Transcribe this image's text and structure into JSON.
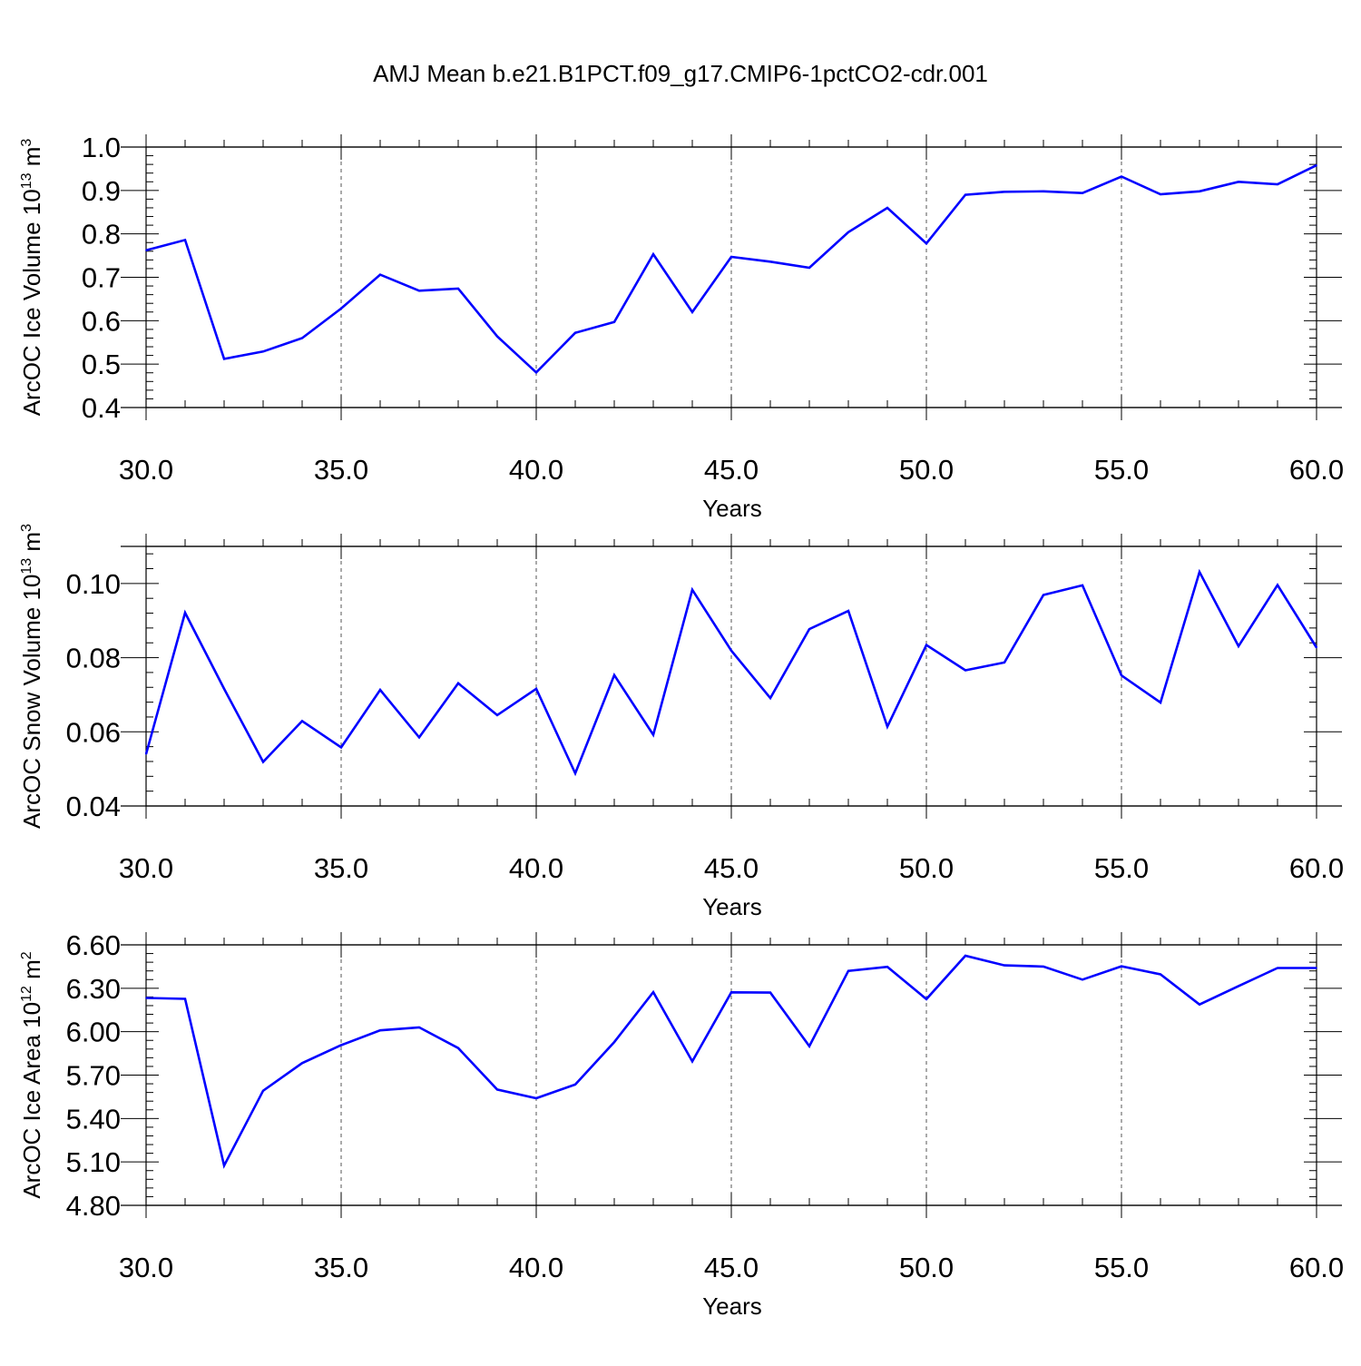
{
  "title": "AMJ Mean b.e21.B1PCT.f09_g17.CMIP6-1pctCO2-cdr.001",
  "colors": {
    "line": "#0000ff",
    "axis": "#000000",
    "grid": "#555555"
  },
  "chart_data": [
    {
      "type": "line",
      "ylabel": "ArcOC Ice Volume 10",
      "ylabel_exp": "13",
      "ylabel_unit": " m",
      "ylabel_unit_exp": "3",
      "xlabel": "Years",
      "xlim": [
        30,
        60
      ],
      "ylim": [
        0.4,
        1.0
      ],
      "xticks": [
        "30.0",
        "35.0",
        "40.0",
        "45.0",
        "50.0",
        "55.0",
        "60.0"
      ],
      "xtick_values": [
        30,
        35,
        40,
        45,
        50,
        55,
        60
      ],
      "yticks": [
        "0.4",
        "0.5",
        "0.6",
        "0.7",
        "0.8",
        "0.9",
        "1.0"
      ],
      "ytick_values": [
        0.4,
        0.5,
        0.6,
        0.7,
        0.8,
        0.9,
        1.0
      ],
      "grid": "vertical dashed",
      "x": [
        30,
        31,
        32,
        33,
        34,
        35,
        36,
        37,
        38,
        39,
        40,
        41,
        42,
        43,
        44,
        45,
        46,
        47,
        48,
        49,
        50,
        51,
        52,
        53,
        54,
        55,
        56,
        57,
        58,
        59,
        60
      ],
      "series": [
        {
          "values": [
            0.762,
            0.786,
            0.512,
            0.529,
            0.56,
            0.628,
            0.706,
            0.669,
            0.674,
            0.564,
            0.481,
            0.572,
            0.597,
            0.753,
            0.62,
            0.747,
            0.736,
            0.722,
            0.804,
            0.86,
            0.778,
            0.89,
            0.897,
            0.898,
            0.894,
            0.932,
            0.891,
            0.898,
            0.92,
            0.914,
            0.958
          ]
        }
      ]
    },
    {
      "type": "line",
      "ylabel": "ArcOC Snow Volume 10",
      "ylabel_exp": "13",
      "ylabel_unit": " m",
      "ylabel_unit_exp": "3",
      "xlabel": "Years",
      "xlim": [
        30,
        60
      ],
      "ylim": [
        0.04,
        0.11
      ],
      "xticks": [
        "30.0",
        "35.0",
        "40.0",
        "45.0",
        "50.0",
        "55.0",
        "60.0"
      ],
      "xtick_values": [
        30,
        35,
        40,
        45,
        50,
        55,
        60
      ],
      "yticks": [
        "0.04",
        "0.06",
        "0.08",
        "0.10"
      ],
      "ytick_values": [
        0.04,
        0.06,
        0.08,
        0.1
      ],
      "grid": "vertical dashed",
      "x": [
        30,
        31,
        32,
        33,
        34,
        35,
        36,
        37,
        38,
        39,
        40,
        41,
        42,
        43,
        44,
        45,
        46,
        47,
        48,
        49,
        50,
        51,
        52,
        53,
        54,
        55,
        56,
        57,
        58,
        59,
        60
      ],
      "series": [
        {
          "values": [
            0.054,
            0.0921,
            0.0716,
            0.0519,
            0.0629,
            0.0558,
            0.0713,
            0.0585,
            0.0731,
            0.0645,
            0.0716,
            0.0488,
            0.0753,
            0.0592,
            0.0983,
            0.0819,
            0.0691,
            0.0877,
            0.0926,
            0.0614,
            0.0834,
            0.0766,
            0.0787,
            0.0969,
            0.0995,
            0.0752,
            0.0679,
            0.1031,
            0.0831,
            0.0996,
            0.0827
          ]
        }
      ]
    },
    {
      "type": "line",
      "ylabel": "ArcOC Ice Area 10",
      "ylabel_exp": "12",
      "ylabel_unit": " m",
      "ylabel_unit_exp": "2",
      "xlabel": "Years",
      "xlim": [
        30,
        60
      ],
      "ylim": [
        4.8,
        6.6
      ],
      "xticks": [
        "30.0",
        "35.0",
        "40.0",
        "45.0",
        "50.0",
        "55.0",
        "60.0"
      ],
      "xtick_values": [
        30,
        35,
        40,
        45,
        50,
        55,
        60
      ],
      "yticks": [
        "4.80",
        "5.10",
        "5.40",
        "5.70",
        "6.00",
        "6.30",
        "6.60"
      ],
      "ytick_values": [
        4.8,
        5.1,
        5.4,
        5.7,
        6.0,
        6.3,
        6.6
      ],
      "grid": "vertical dashed",
      "x": [
        30,
        31,
        32,
        33,
        34,
        35,
        36,
        37,
        38,
        39,
        40,
        41,
        42,
        43,
        44,
        45,
        46,
        47,
        48,
        49,
        50,
        51,
        52,
        53,
        54,
        55,
        56,
        57,
        58,
        59,
        60
      ],
      "series": [
        {
          "values": [
            6.233,
            6.227,
            5.075,
            5.592,
            5.783,
            5.907,
            6.009,
            6.03,
            5.887,
            5.6,
            5.54,
            5.635,
            5.928,
            6.273,
            5.795,
            6.272,
            6.27,
            5.9,
            6.42,
            6.448,
            6.225,
            6.525,
            6.458,
            6.45,
            6.36,
            6.452,
            6.396,
            6.188,
            6.315,
            6.44,
            6.44
          ]
        }
      ]
    }
  ]
}
